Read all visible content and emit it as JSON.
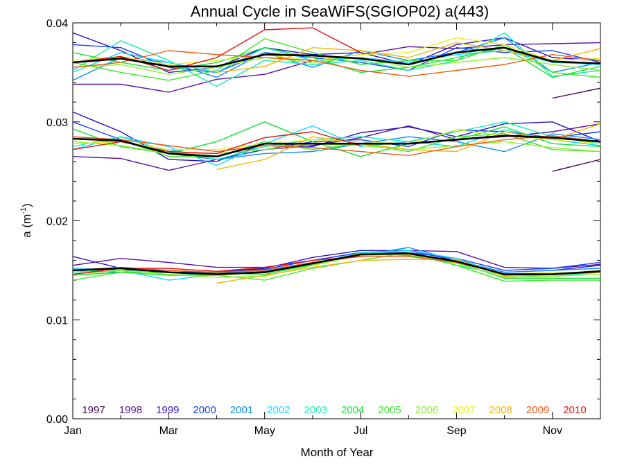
{
  "chart_data": {
    "type": "line",
    "title": "Annual Cycle in SeaWiFS(SGIOP02) a(443)",
    "xlabel": "Month of Year",
    "ylabel": "a (m",
    "ylabel_sup": "-1",
    "ylabel_close": ")",
    "xlim": [
      1,
      12
    ],
    "ylim": [
      0,
      0.04
    ],
    "x_ticks": [
      {
        "value": 1,
        "label": "Jan"
      },
      {
        "value": 3,
        "label": "Mar"
      },
      {
        "value": 5,
        "label": "May"
      },
      {
        "value": 7,
        "label": "Jul"
      },
      {
        "value": 9,
        "label": "Sep"
      },
      {
        "value": 11,
        "label": "Nov"
      }
    ],
    "y_ticks": [
      {
        "value": 0.0,
        "label": "0.00"
      },
      {
        "value": 0.01,
        "label": "0.01"
      },
      {
        "value": 0.02,
        "label": "0.02"
      },
      {
        "value": 0.03,
        "label": "0.03"
      },
      {
        "value": 0.04,
        "label": "0.04"
      }
    ],
    "grid": false,
    "legend_position": "bottom inside",
    "x": [
      1,
      2,
      3,
      4,
      5,
      6,
      7,
      8,
      9,
      10,
      11,
      12
    ],
    "series": [
      {
        "name": "1997",
        "color": "#3a004f",
        "groups": [
          [
            null,
            null,
            null,
            null,
            null,
            null,
            null,
            null,
            null,
            null,
            0.0324,
            0.0334
          ],
          [
            null,
            null,
            null,
            null,
            null,
            null,
            null,
            null,
            null,
            null,
            0.025,
            0.0262
          ],
          [
            null,
            null,
            null,
            null,
            null,
            null,
            null,
            null,
            null,
            null,
            null,
            null
          ]
        ]
      },
      {
        "name": "1998",
        "color": "#5a0fa0",
        "groups": [
          [
            0.0338,
            0.0338,
            0.033,
            0.0343,
            0.0348,
            0.0362,
            0.0368,
            0.0376,
            0.0374,
            0.0378,
            0.0379,
            0.038
          ],
          [
            0.0265,
            0.0263,
            0.0251,
            0.0262,
            0.0272,
            0.0276,
            0.0284,
            0.0296,
            0.0282,
            0.0285,
            0.029,
            0.0298
          ],
          [
            0.0155,
            0.0162,
            0.0158,
            0.0153,
            0.0153,
            0.016,
            0.0168,
            0.017,
            0.0169,
            0.0153,
            0.0152,
            0.0156
          ]
        ]
      },
      {
        "name": "1999",
        "color": "#2a10d0",
        "groups": [
          [
            0.039,
            0.0372,
            0.035,
            0.0355,
            0.0375,
            0.0368,
            0.037,
            0.0358,
            0.0378,
            0.0385,
            0.0365,
            0.0362
          ],
          [
            0.031,
            0.029,
            0.0262,
            0.026,
            0.0278,
            0.0275,
            0.0289,
            0.0295,
            0.0285,
            0.0298,
            0.03,
            0.028
          ],
          [
            0.0164,
            0.0152,
            0.0148,
            0.0148,
            0.0152,
            0.0163,
            0.017,
            0.017,
            0.016,
            0.0148,
            0.015,
            0.0155
          ]
        ]
      },
      {
        "name": "2000",
        "color": "#1040ff",
        "groups": [
          [
            0.0378,
            0.0375,
            0.0355,
            0.035,
            0.037,
            0.0365,
            0.036,
            0.0352,
            0.0375,
            0.037,
            0.0372,
            0.036
          ],
          [
            0.03,
            0.0282,
            0.0268,
            0.0262,
            0.0272,
            0.028,
            0.0282,
            0.0275,
            0.0292,
            0.029,
            0.0284,
            0.029
          ],
          [
            0.0152,
            0.015,
            0.015,
            0.0147,
            0.0151,
            0.016,
            0.0168,
            0.0168,
            0.0162,
            0.015,
            0.0152,
            0.0158
          ]
        ]
      },
      {
        "name": "2001",
        "color": "#0c8cff",
        "groups": [
          [
            0.0342,
            0.0365,
            0.036,
            0.0345,
            0.037,
            0.0355,
            0.0372,
            0.0362,
            0.037,
            0.0385,
            0.035,
            0.036
          ],
          [
            0.0278,
            0.028,
            0.0272,
            0.0262,
            0.0268,
            0.027,
            0.0278,
            0.0285,
            0.028,
            0.027,
            0.0288,
            0.0282
          ],
          [
            0.015,
            0.0148,
            0.0145,
            0.0145,
            0.0149,
            0.0158,
            0.0165,
            0.0173,
            0.016,
            0.0148,
            0.015,
            0.0152
          ]
        ]
      },
      {
        "name": "2002",
        "color": "#12d8ff",
        "groups": [
          [
            0.035,
            0.037,
            0.036,
            0.035,
            0.0375,
            0.0362,
            0.0365,
            0.036,
            0.0368,
            0.0372,
            0.036,
            0.0358
          ],
          [
            0.0272,
            0.0285,
            0.0275,
            0.0256,
            0.0278,
            0.0296,
            0.0275,
            0.028,
            0.0275,
            0.0292,
            0.0282,
            0.0276
          ],
          [
            0.0152,
            0.015,
            0.014,
            0.0146,
            0.015,
            0.0156,
            0.0168,
            0.017,
            0.0162,
            0.0145,
            0.0146,
            0.015
          ]
        ]
      },
      {
        "name": "2003",
        "color": "#12f0b0",
        "groups": [
          [
            0.0352,
            0.0382,
            0.0362,
            0.0336,
            0.0362,
            0.0358,
            0.0362,
            0.0352,
            0.0362,
            0.039,
            0.0346,
            0.0352
          ],
          [
            0.0275,
            0.0285,
            0.027,
            0.0262,
            0.0275,
            0.0282,
            0.0285,
            0.028,
            0.029,
            0.03,
            0.0285,
            0.0278
          ],
          [
            0.0148,
            0.0152,
            0.0145,
            0.0147,
            0.0148,
            0.0155,
            0.0168,
            0.0167,
            0.0155,
            0.0145,
            0.0144,
            0.0148
          ]
        ]
      },
      {
        "name": "2004",
        "color": "#14e23c",
        "groups": [
          [
            0.037,
            0.036,
            0.0352,
            0.036,
            0.0375,
            0.0365,
            0.035,
            0.0355,
            0.0365,
            0.0375,
            0.0345,
            0.0356
          ],
          [
            0.0293,
            0.0275,
            0.0268,
            0.028,
            0.03,
            0.028,
            0.0265,
            0.0278,
            0.0282,
            0.0295,
            0.0278,
            0.0275
          ],
          [
            0.0145,
            0.0148,
            0.0148,
            0.0147,
            0.0146,
            0.0156,
            0.0167,
            0.0165,
            0.0158,
            0.0142,
            0.0142,
            0.0142
          ]
        ]
      },
      {
        "name": "2005",
        "color": "#3ce82a",
        "groups": [
          [
            0.036,
            0.035,
            0.0342,
            0.0352,
            0.0384,
            0.037,
            0.0358,
            0.0362,
            0.0362,
            0.0378,
            0.035,
            0.0345
          ],
          [
            0.0285,
            0.0282,
            0.0265,
            0.0265,
            0.028,
            0.0272,
            0.0278,
            0.027,
            0.0285,
            0.0288,
            0.0272,
            0.027
          ],
          [
            0.014,
            0.0148,
            0.0145,
            0.0145,
            0.014,
            0.0152,
            0.016,
            0.0168,
            0.0155,
            0.0139,
            0.014,
            0.014
          ]
        ]
      },
      {
        "name": "2006",
        "color": "#8cf224",
        "groups": [
          [
            0.0355,
            0.0358,
            0.0348,
            0.0355,
            0.0365,
            0.036,
            0.0365,
            0.0355,
            0.036,
            0.0365,
            0.0358,
            0.0352
          ],
          [
            0.028,
            0.0276,
            0.0268,
            0.0268,
            0.0272,
            0.0278,
            0.0276,
            0.0272,
            0.0276,
            0.028,
            0.0274,
            0.027
          ],
          [
            0.0146,
            0.015,
            0.0146,
            0.0143,
            0.0144,
            0.0155,
            0.0165,
            0.0166,
            0.0157,
            0.0143,
            0.0144,
            0.0146
          ]
        ]
      },
      {
        "name": "2007",
        "color": "#e4f228",
        "groups": [
          [
            0.0362,
            0.0366,
            0.0358,
            0.0362,
            0.0368,
            0.0362,
            0.0368,
            0.037,
            0.0385,
            0.0378,
            0.0362,
            0.0364
          ],
          [
            0.0278,
            0.028,
            0.0272,
            0.0272,
            0.0278,
            0.0282,
            0.028,
            0.0278,
            0.0292,
            0.0286,
            0.0282,
            0.0278
          ],
          [
            0.015,
            0.0152,
            0.0148,
            0.0145,
            0.0148,
            0.0158,
            0.0166,
            0.0166,
            0.016,
            0.0146,
            0.0148,
            0.0148
          ]
        ]
      },
      {
        "name": "2008",
        "color": "#f8b400",
        "groups": [
          [
            null,
            null,
            null,
            0.035,
            0.0356,
            0.0375,
            0.0372,
            0.0365,
            0.038,
            0.0372,
            0.0362,
            0.0374
          ],
          [
            null,
            null,
            null,
            0.0252,
            0.0262,
            0.0285,
            0.0278,
            0.0272,
            0.027,
            0.029,
            0.0282,
            0.0298
          ],
          [
            null,
            null,
            null,
            0.0137,
            0.0145,
            0.0153,
            0.016,
            0.0161,
            0.0161,
            0.0144,
            0.0146,
            0.015
          ]
        ]
      },
      {
        "name": "2009",
        "color": "#f25a10",
        "groups": [
          [
            0.0355,
            0.036,
            0.0372,
            0.0368,
            0.0365,
            0.0362,
            0.0352,
            0.0346,
            0.0352,
            0.0358,
            0.0368,
            0.0362
          ],
          [
            0.0285,
            0.0282,
            0.0276,
            0.027,
            0.0276,
            0.0274,
            0.027,
            0.0266,
            0.0275,
            0.0282,
            0.0286,
            0.028
          ],
          [
            0.015,
            0.0153,
            0.015,
            0.0148,
            0.015,
            0.0158,
            0.0164,
            0.0164,
            0.0158,
            0.0146,
            0.0146,
            0.0148
          ]
        ]
      },
      {
        "name": "2010",
        "color": "#e81010",
        "groups": [
          [
            0.036,
            0.0366,
            0.0352,
            0.0365,
            0.0393,
            0.0395,
            0.037,
            null,
            null,
            null,
            null,
            null
          ],
          [
            0.0272,
            0.028,
            0.027,
            0.0268,
            0.0284,
            0.029,
            0.0276,
            null,
            null,
            null,
            null,
            null
          ],
          [
            0.0146,
            0.0152,
            0.0152,
            0.0149,
            0.0153,
            0.016,
            0.0164,
            null,
            null,
            null,
            null,
            null
          ]
        ]
      },
      {
        "name": "",
        "color": "#000000",
        "width": 2.6,
        "groups": [
          [
            0.036,
            0.0364,
            0.0356,
            0.0356,
            0.0368,
            0.0367,
            0.0364,
            0.0358,
            0.037,
            0.0375,
            0.0361,
            0.0359
          ],
          [
            0.0283,
            0.0281,
            0.0268,
            0.0265,
            0.0278,
            0.0278,
            0.0278,
            0.0278,
            0.0282,
            0.0286,
            0.0284,
            0.028
          ],
          [
            0.015,
            0.0152,
            0.0148,
            0.0146,
            0.0148,
            0.0157,
            0.0166,
            0.0167,
            0.0159,
            0.0146,
            0.0146,
            0.0149
          ]
        ]
      }
    ]
  }
}
